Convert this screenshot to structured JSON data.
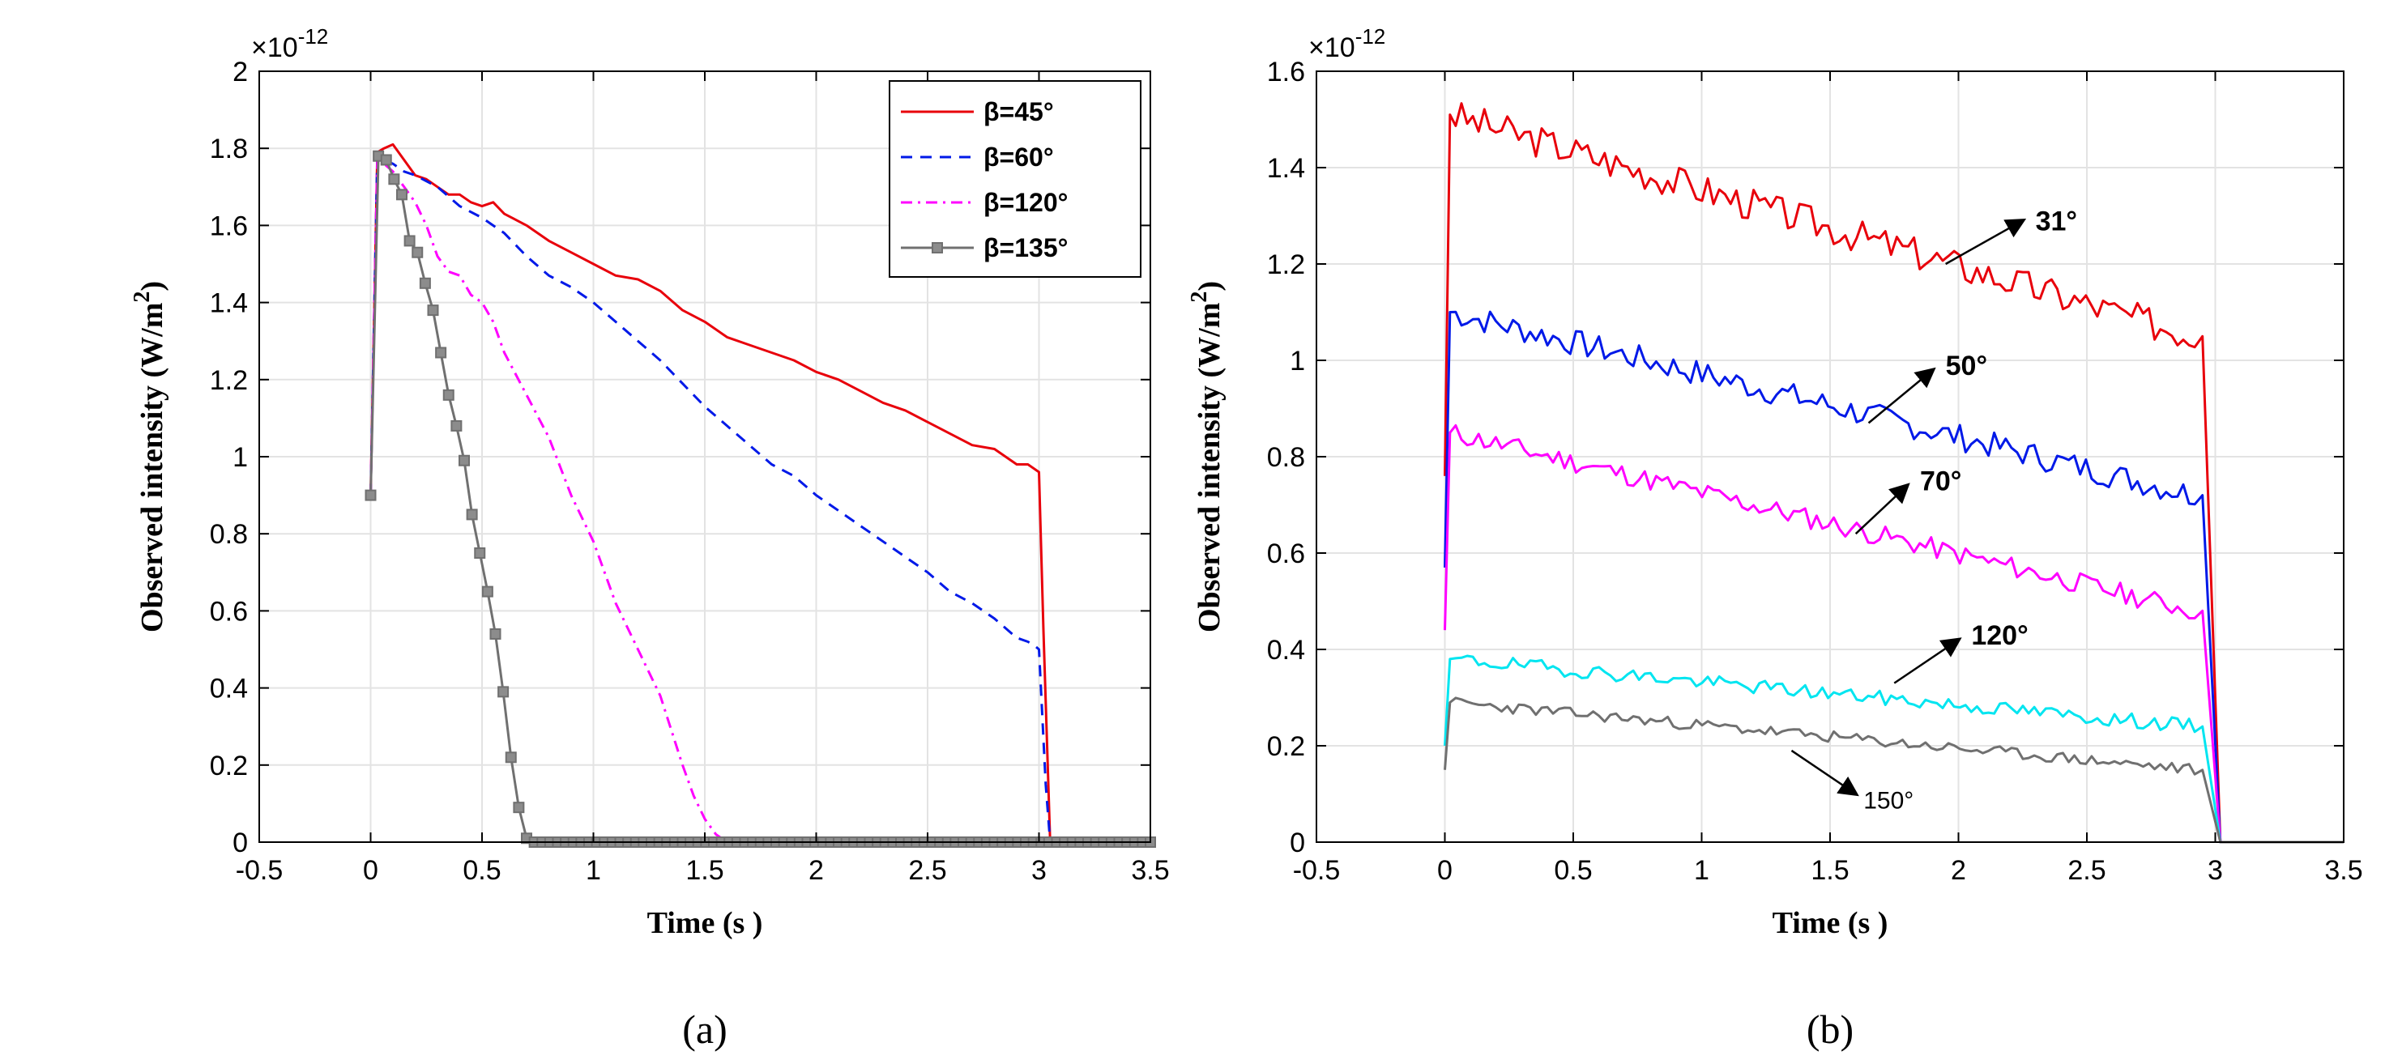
{
  "chart_data": [
    {
      "panel": "(a)",
      "type": "line",
      "title": "",
      "xlabel": "Time (s )",
      "ylabel": "Observed intensity (W/m",
      "ylabel_sup": "2",
      "ylabel_close": ")",
      "y_exponent_base": "×10",
      "y_exponent_power": "-12",
      "xlim": [
        -0.5,
        3.5
      ],
      "ylim": [
        0,
        2
      ],
      "xticks": [
        -0.5,
        0,
        0.5,
        1,
        1.5,
        2,
        2.5,
        3,
        3.5
      ],
      "xtick_labels": [
        "-0.5",
        "0",
        "0.5",
        "1",
        "1.5",
        "2",
        "2.5",
        "3",
        "3.5"
      ],
      "yticks": [
        0,
        0.2,
        0.4,
        0.6,
        0.8,
        1,
        1.2,
        1.4,
        1.6,
        1.8,
        2
      ],
      "ytick_labels": [
        "0",
        "0.2",
        "0.4",
        "0.6",
        "0.8",
        "1",
        "1.2",
        "1.4",
        "1.6",
        "1.8",
        "2"
      ],
      "grid": true,
      "legend_position": "top-right",
      "series": [
        {
          "name": "β=45°",
          "color": "#e8000b",
          "style": "solid",
          "marker": "none",
          "x": [
            0,
            0.03,
            0.06,
            0.1,
            0.15,
            0.2,
            0.25,
            0.3,
            0.35,
            0.4,
            0.45,
            0.5,
            0.55,
            0.6,
            0.7,
            0.8,
            0.9,
            1.0,
            1.1,
            1.2,
            1.3,
            1.4,
            1.5,
            1.6,
            1.7,
            1.8,
            1.9,
            2.0,
            2.1,
            2.2,
            2.3,
            2.4,
            2.5,
            2.6,
            2.7,
            2.8,
            2.9,
            2.95,
            3.0,
            3.02,
            3.05
          ],
          "y": [
            0.9,
            1.79,
            1.8,
            1.81,
            1.77,
            1.73,
            1.72,
            1.7,
            1.68,
            1.68,
            1.66,
            1.65,
            1.66,
            1.63,
            1.6,
            1.56,
            1.53,
            1.5,
            1.47,
            1.46,
            1.43,
            1.38,
            1.35,
            1.31,
            1.29,
            1.27,
            1.25,
            1.22,
            1.2,
            1.17,
            1.14,
            1.12,
            1.09,
            1.06,
            1.03,
            1.02,
            0.98,
            0.98,
            0.96,
            0.55,
            0.0
          ]
        },
        {
          "name": "β=60°",
          "color": "#0019e8",
          "style": "dashed",
          "marker": "none",
          "x": [
            0,
            0.03,
            0.06,
            0.1,
            0.15,
            0.2,
            0.3,
            0.4,
            0.5,
            0.6,
            0.7,
            0.8,
            0.9,
            1.0,
            1.1,
            1.2,
            1.3,
            1.4,
            1.5,
            1.6,
            1.7,
            1.8,
            1.9,
            2.0,
            2.1,
            2.2,
            2.3,
            2.4,
            2.5,
            2.6,
            2.7,
            2.8,
            2.9,
            2.95,
            2.98,
            3.0,
            3.03,
            3.05
          ],
          "y": [
            0.9,
            1.78,
            1.77,
            1.76,
            1.74,
            1.73,
            1.7,
            1.65,
            1.62,
            1.58,
            1.52,
            1.47,
            1.44,
            1.4,
            1.35,
            1.3,
            1.25,
            1.19,
            1.13,
            1.08,
            1.03,
            0.98,
            0.95,
            0.9,
            0.86,
            0.82,
            0.78,
            0.74,
            0.7,
            0.65,
            0.62,
            0.58,
            0.53,
            0.52,
            0.51,
            0.5,
            0.15,
            0.0
          ]
        },
        {
          "name": "β=120°",
          "color": "#ff00ff",
          "style": "dashdot",
          "marker": "none",
          "x": [
            0,
            0.03,
            0.06,
            0.1,
            0.15,
            0.2,
            0.25,
            0.3,
            0.35,
            0.4,
            0.45,
            0.5,
            0.55,
            0.6,
            0.7,
            0.8,
            0.9,
            1.0,
            1.1,
            1.2,
            1.3,
            1.4,
            1.45,
            1.5,
            1.55,
            1.6,
            1.65
          ],
          "y": [
            0.9,
            1.78,
            1.76,
            1.74,
            1.7,
            1.66,
            1.6,
            1.52,
            1.48,
            1.47,
            1.42,
            1.4,
            1.35,
            1.27,
            1.16,
            1.05,
            0.9,
            0.78,
            0.62,
            0.5,
            0.38,
            0.2,
            0.12,
            0.06,
            0.02,
            0.0,
            0.0
          ]
        },
        {
          "name": "β=135°",
          "color": "#707070",
          "style": "solid",
          "marker": "square",
          "x": [
            0,
            0.035,
            0.07,
            0.105,
            0.14,
            0.175,
            0.21,
            0.245,
            0.28,
            0.315,
            0.35,
            0.385,
            0.42,
            0.455,
            0.49,
            0.525,
            0.56,
            0.595,
            0.63,
            0.665,
            0.7,
            0.735,
            0.77,
            0.805,
            0.84,
            0.875,
            0.91,
            0.945,
            0.98,
            1.015,
            1.05,
            1.085,
            1.12,
            1.155,
            1.19,
            1.225,
            1.26,
            1.295,
            1.33,
            1.365,
            1.4,
            1.435,
            1.47,
            1.505,
            1.54,
            1.575,
            1.61,
            1.645,
            1.68,
            1.715,
            1.75,
            1.785,
            1.82,
            1.855,
            1.89,
            1.925,
            1.96,
            1.995,
            2.03,
            2.065,
            2.1,
            2.135,
            2.17,
            2.205,
            2.24,
            2.275,
            2.31,
            2.345,
            2.38,
            2.415,
            2.45,
            2.485,
            2.52,
            2.555,
            2.59,
            2.625,
            2.66,
            2.695,
            2.73,
            2.765,
            2.8,
            2.835,
            2.87,
            2.905,
            2.94,
            2.975,
            3.01,
            3.045,
            3.08,
            3.115,
            3.15,
            3.185,
            3.22,
            3.255,
            3.29,
            3.325,
            3.36,
            3.395,
            3.43,
            3.465,
            3.5
          ],
          "y": [
            0.9,
            1.78,
            1.77,
            1.72,
            1.68,
            1.56,
            1.53,
            1.45,
            1.38,
            1.27,
            1.16,
            1.08,
            0.99,
            0.85,
            0.75,
            0.65,
            0.54,
            0.39,
            0.22,
            0.09,
            0.01,
            0,
            0,
            0,
            0,
            0,
            0,
            0,
            0,
            0,
            0,
            0,
            0,
            0,
            0,
            0,
            0,
            0,
            0,
            0,
            0,
            0,
            0,
            0,
            0,
            0,
            0,
            0,
            0,
            0,
            0,
            0,
            0,
            0,
            0,
            0,
            0,
            0,
            0,
            0,
            0,
            0,
            0,
            0,
            0,
            0,
            0,
            0,
            0,
            0,
            0,
            0,
            0,
            0,
            0,
            0,
            0,
            0,
            0,
            0,
            0,
            0,
            0,
            0,
            0,
            0,
            0,
            0,
            0,
            0,
            0,
            0,
            0,
            0,
            0,
            0,
            0,
            0,
            0,
            0,
            0
          ]
        }
      ]
    },
    {
      "panel": "(b)",
      "type": "line",
      "title": "",
      "xlabel": "Time (s )",
      "ylabel": "Observed intensity (W/m",
      "ylabel_sup": "2",
      "ylabel_close": ")",
      "y_exponent_base": "×10",
      "y_exponent_power": "-12",
      "xlim": [
        -0.5,
        3.5
      ],
      "ylim": [
        0,
        1.6
      ],
      "xticks": [
        -0.5,
        0,
        0.5,
        1,
        1.5,
        2,
        2.5,
        3,
        3.5
      ],
      "xtick_labels": [
        "-0.5",
        "0",
        "0.5",
        "1",
        "1.5",
        "2",
        "2.5",
        "3",
        "3.5"
      ],
      "yticks": [
        0,
        0.2,
        0.4,
        0.6,
        0.8,
        1,
        1.2,
        1.4,
        1.6
      ],
      "ytick_labels": [
        "0",
        "0.2",
        "0.4",
        "0.6",
        "0.8",
        "1",
        "1.2",
        "1.4",
        "1.6"
      ],
      "grid": true,
      "series": [
        {
          "name": "31°",
          "color": "#e8000b",
          "start": 0.76,
          "peak": 1.51,
          "end": 1.05,
          "noise": 0.035,
          "seed": 3
        },
        {
          "name": "50°",
          "color": "#0019e8",
          "start": 0.57,
          "peak": 1.1,
          "end": 0.72,
          "noise": 0.028,
          "seed": 7
        },
        {
          "name": "70°",
          "color": "#ff00ff",
          "start": 0.44,
          "peak": 0.85,
          "end": 0.48,
          "noise": 0.022,
          "seed": 11
        },
        {
          "name": "120°",
          "color": "#00e5f0",
          "start": 0.2,
          "peak": 0.38,
          "end": 0.24,
          "noise": 0.015,
          "seed": 19
        },
        {
          "name": "150°",
          "color": "#707070",
          "start": 0.15,
          "peak": 0.29,
          "end": 0.15,
          "noise": 0.012,
          "seed": 23
        }
      ],
      "annotations": [
        {
          "text": "31°",
          "bold": true
        },
        {
          "text": "50°",
          "bold": true
        },
        {
          "text": "70°",
          "bold": true
        },
        {
          "text": "120°",
          "bold": true
        },
        {
          "text": "150°",
          "bold": false
        }
      ]
    }
  ],
  "panel_labels": [
    "(a)",
    "(b)"
  ]
}
